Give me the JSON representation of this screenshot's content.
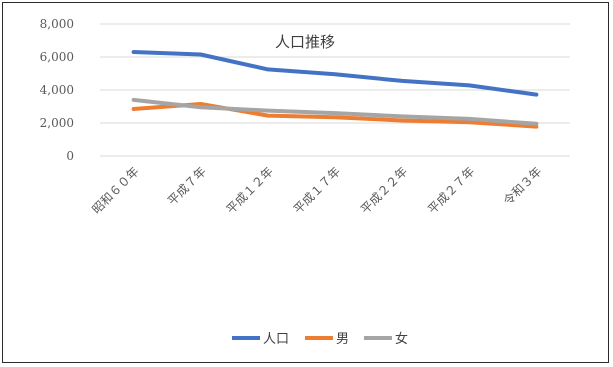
{
  "chart_data": {
    "type": "line",
    "title": "人口推移",
    "categories": [
      "昭和６０年",
      "平成７年",
      "平成１２年",
      "平成１７年",
      "平成２２年",
      "平成２７年",
      "令和３年"
    ],
    "y_tick_labels": [
      "0",
      "2,000",
      "4,000",
      "6,000",
      "8,000"
    ],
    "ylim": [
      0,
      8000
    ],
    "grid": true,
    "legend_position": "bottom",
    "series": [
      {
        "name": "人口",
        "color": "#4472c4",
        "values": [
          6300,
          6150,
          5250,
          4950,
          4550,
          4280,
          3720
        ]
      },
      {
        "name": "男",
        "color": "#ed7d31",
        "values": [
          2850,
          3150,
          2450,
          2350,
          2150,
          2050,
          1780
        ]
      },
      {
        "name": "女",
        "color": "#a5a5a5",
        "values": [
          3400,
          2950,
          2750,
          2600,
          2400,
          2250,
          1950
        ]
      }
    ]
  }
}
